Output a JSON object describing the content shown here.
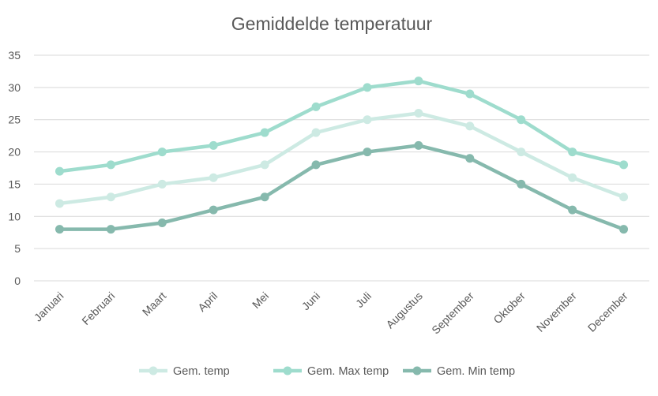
{
  "chart_data": {
    "type": "line",
    "title": "Gemiddelde temperatuur",
    "xlabel": "",
    "ylabel": "",
    "categories": [
      "Januari",
      "Februari",
      "Maart",
      "April",
      "Mei",
      "Juni",
      "Juli",
      "Augustus",
      "September",
      "Oktober",
      "November",
      "December"
    ],
    "ylim": [
      0,
      35
    ],
    "yticks": [
      0,
      5,
      10,
      15,
      20,
      25,
      30,
      35
    ],
    "grid": true,
    "legend_position": "bottom",
    "series": [
      {
        "name": "Gem. temp",
        "color": "#cdeae3",
        "values": [
          12,
          13,
          15,
          16,
          18,
          23,
          25,
          26,
          24,
          20,
          16,
          13
        ]
      },
      {
        "name": "Gem. Max temp",
        "color": "#9edccd",
        "values": [
          17,
          18,
          20,
          21,
          23,
          27,
          30,
          31,
          29,
          25,
          20,
          18
        ]
      },
      {
        "name": "Gem. Min temp",
        "color": "#86b9ad",
        "values": [
          8,
          8,
          9,
          11,
          13,
          18,
          20,
          21,
          19,
          15,
          11,
          8
        ]
      }
    ]
  }
}
